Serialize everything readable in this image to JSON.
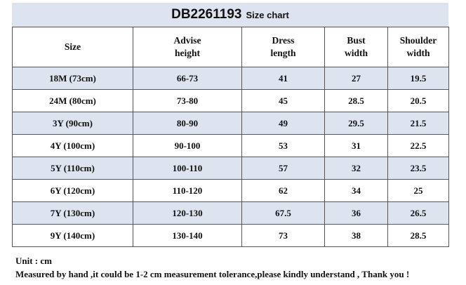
{
  "title": {
    "code": "DB2261193",
    "subtitle": "Size chart"
  },
  "table": {
    "headers": [
      [
        "Size"
      ],
      [
        "Advise",
        "height"
      ],
      [
        "Dress",
        "length"
      ],
      [
        "Bust",
        "width"
      ],
      [
        "Shoulder",
        "width"
      ]
    ],
    "rows": [
      [
        "18M (73cm)",
        "66-73",
        "41",
        "27",
        "19.5"
      ],
      [
        "24M (80cm)",
        "73-80",
        "45",
        "28.5",
        "20.5"
      ],
      [
        "3Y (90cm)",
        "80-90",
        "49",
        "29.5",
        "21.5"
      ],
      [
        "4Y (100cm)",
        "90-100",
        "53",
        "31",
        "22.5"
      ],
      [
        "5Y (110cm)",
        "100-110",
        "57",
        "32",
        "23.5"
      ],
      [
        "6Y (120cm)",
        "110-120",
        "62",
        "34",
        "25"
      ],
      [
        "7Y (130cm)",
        "120-130",
        "67.5",
        "36",
        "26.5"
      ],
      [
        "9Y (140cm)",
        "130-140",
        "73",
        "38",
        "28.5"
      ]
    ]
  },
  "notes": {
    "unit": "Unit : cm",
    "disclaimer": "Measured by hand ,it could be 1-2 cm measurement tolerance,please kindly understand , Thank you !"
  },
  "colors": {
    "band": "#dde4f0",
    "border": "#555555",
    "text": "#111111"
  }
}
